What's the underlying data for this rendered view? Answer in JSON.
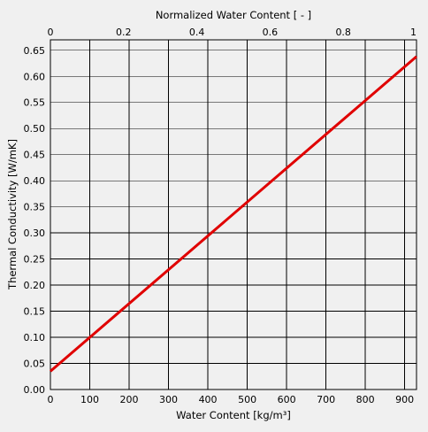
{
  "chart_data": {
    "type": "line",
    "title": "",
    "xlabel": "Water Content [kg/m³]",
    "x2label": "Normalized Water Content [ - ]",
    "ylabel": "Thermal Conductivity [W/mK]",
    "xlim": [
      0,
      930
    ],
    "x2lim": [
      0,
      1
    ],
    "ylim": [
      0,
      0.67
    ],
    "x_ticks": [
      0,
      100,
      200,
      300,
      400,
      500,
      600,
      700,
      800,
      900
    ],
    "x_tick_labels": [
      "0",
      "100",
      "200",
      "300",
      "400",
      "500",
      "600",
      "700",
      "800",
      "900"
    ],
    "x2_ticks": [
      0,
      0.2,
      0.4,
      0.6,
      0.8,
      1
    ],
    "x2_tick_labels": [
      "0",
      "0.2",
      "0.4",
      "0.6",
      "0.8",
      "1"
    ],
    "y_ticks": [
      0,
      0.05,
      0.1,
      0.15,
      0.2,
      0.25,
      0.3,
      0.35,
      0.4,
      0.45,
      0.5,
      0.55,
      0.6,
      0.65
    ],
    "y_tick_labels": [
      "0.00",
      "0.05",
      "0.10",
      "0.15",
      "0.20",
      "0.25",
      "0.30",
      "0.35",
      "0.40",
      "0.45",
      "0.50",
      "0.55",
      "0.60",
      "0.65"
    ],
    "grid": true,
    "series": [
      {
        "x": [
          0,
          930
        ],
        "y": [
          0.035,
          0.638
        ],
        "color": "#e00000"
      }
    ]
  }
}
